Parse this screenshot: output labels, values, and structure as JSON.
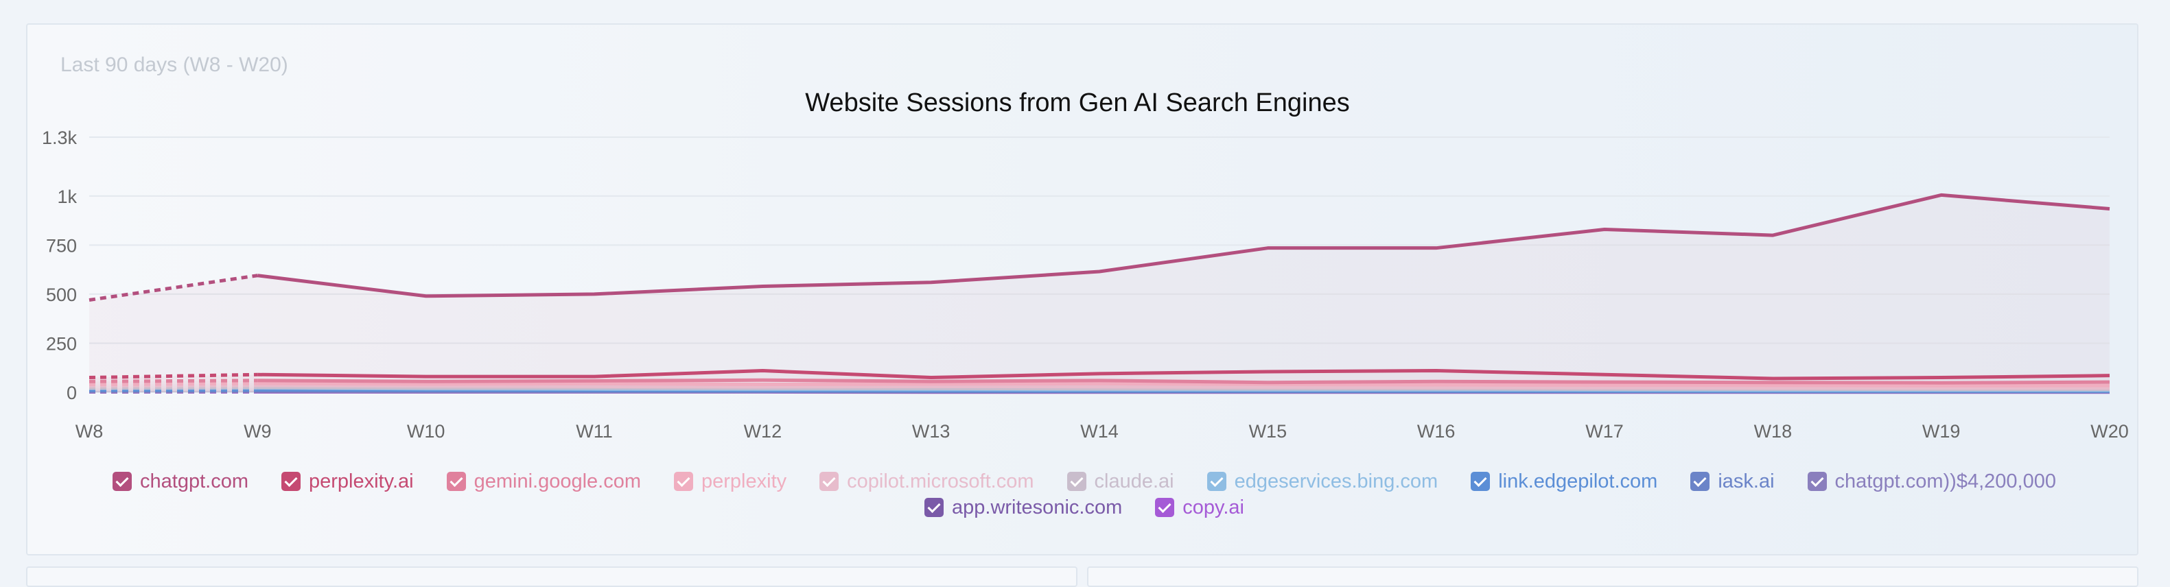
{
  "panel": {
    "range_label": "Last 90 days (W8 - W20)"
  },
  "chart_data": {
    "type": "line",
    "title": "Website Sessions from Gen AI Search Engines",
    "xlabel": "",
    "ylabel": "",
    "categories": [
      "W8",
      "W9",
      "W10",
      "W11",
      "W12",
      "W13",
      "W14",
      "W15",
      "W16",
      "W17",
      "W18",
      "W19",
      "W20"
    ],
    "ylim": [
      0,
      1300
    ],
    "yticks": [
      0,
      250,
      500,
      750,
      1000,
      1300
    ],
    "ytick_labels": [
      "0",
      "250",
      "500",
      "750",
      "1k",
      "1.3k"
    ],
    "grid": true,
    "area_fill": true,
    "partial_period_dashed_until": "W9",
    "legend_position": "bottom",
    "series": [
      {
        "name": "chatgpt.com",
        "color": "#b34f7e",
        "values": [
          470,
          595,
          490,
          500,
          540,
          560,
          615,
          735,
          735,
          830,
          800,
          1005,
          935
        ]
      },
      {
        "name": "perplexity.ai",
        "color": "#c54a72",
        "values": [
          75,
          90,
          80,
          80,
          110,
          75,
          95,
          105,
          110,
          90,
          70,
          75,
          85
        ]
      },
      {
        "name": "gemini.google.com",
        "color": "#e0819d",
        "values": [
          55,
          60,
          55,
          58,
          62,
          55,
          60,
          50,
          55,
          52,
          50,
          48,
          52
        ]
      },
      {
        "name": "perplexity",
        "color": "#f0aec0",
        "values": [
          40,
          45,
          42,
          44,
          40,
          42,
          44,
          40,
          38,
          36,
          35,
          33,
          34
        ]
      },
      {
        "name": "copilot.microsoft.com",
        "color": "#e7bccc",
        "values": [
          32,
          35,
          32,
          30,
          28,
          30,
          28,
          26,
          25,
          24,
          22,
          22,
          22
        ]
      },
      {
        "name": "claude.ai",
        "color": "#c9bdcc",
        "values": [
          22,
          25,
          22,
          22,
          20,
          20,
          18,
          18,
          18,
          16,
          16,
          15,
          15
        ]
      },
      {
        "name": "edgeservices.bing.com",
        "color": "#8fbde3",
        "values": [
          20,
          22,
          18,
          16,
          15,
          14,
          13,
          12,
          12,
          11,
          10,
          10,
          10
        ]
      },
      {
        "name": "link.edgepilot.com",
        "color": "#5b8ed6",
        "values": [
          12,
          14,
          12,
          10,
          9,
          8,
          8,
          7,
          7,
          6,
          6,
          6,
          6
        ]
      },
      {
        "name": "iask.ai",
        "color": "#6b84c8",
        "values": [
          8,
          9,
          8,
          7,
          6,
          6,
          5,
          5,
          5,
          5,
          4,
          4,
          4
        ]
      },
      {
        "name": "chatgpt.com))$4,200,000",
        "color": "#8a7fbd",
        "values": [
          5,
          6,
          5,
          4,
          4,
          4,
          3,
          3,
          3,
          3,
          3,
          3,
          3
        ]
      },
      {
        "name": "app.writesonic.com",
        "color": "#7a5aa8",
        "values": [
          3,
          4,
          3,
          3,
          3,
          2,
          2,
          2,
          2,
          2,
          2,
          2,
          2
        ]
      },
      {
        "name": "copy.ai",
        "color": "#a55ad6",
        "values": [
          2,
          2,
          2,
          2,
          2,
          1,
          1,
          1,
          1,
          1,
          1,
          1,
          1
        ]
      }
    ]
  }
}
